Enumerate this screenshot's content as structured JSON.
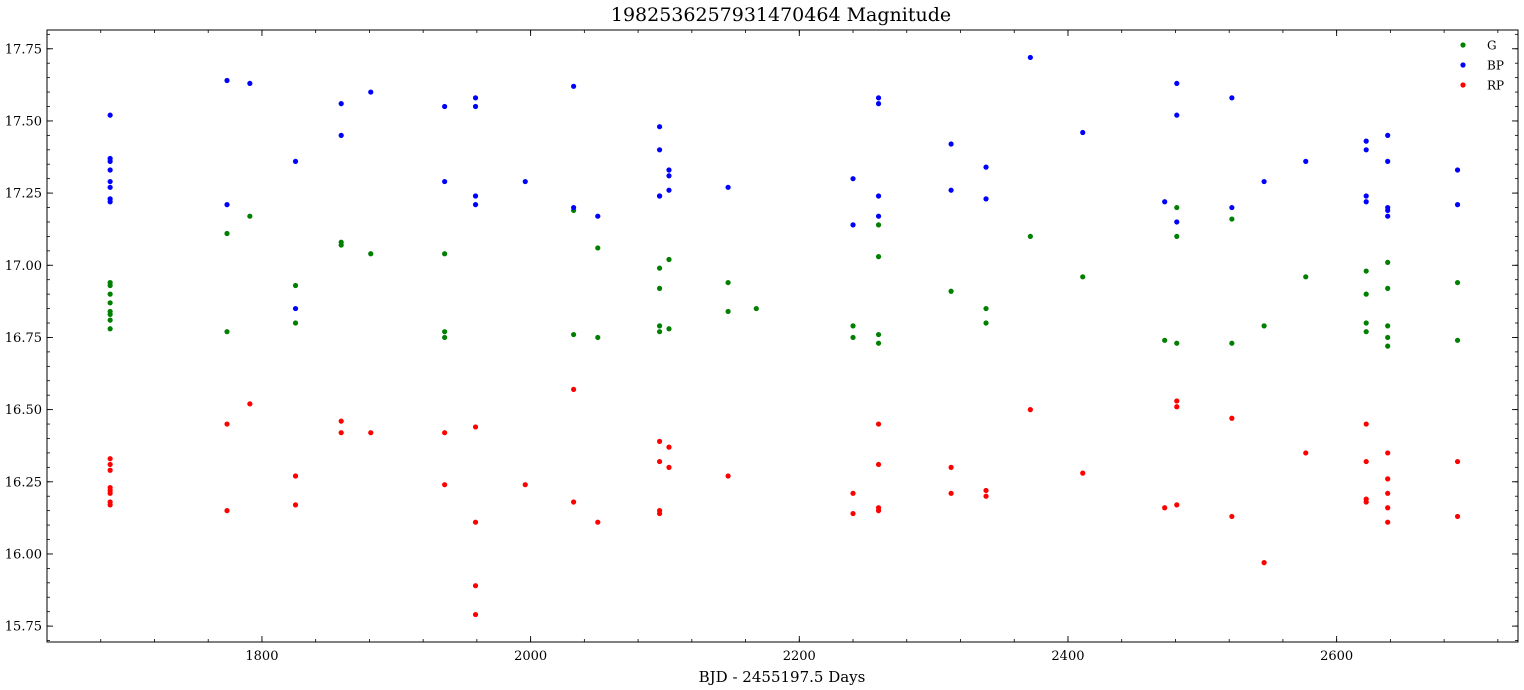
{
  "chart_data": {
    "type": "scatter",
    "title": "1982536257931470464 Magnitude",
    "xlabel": "BJD - 2455197.5 Days",
    "ylabel": "",
    "xlim": [
      1640,
      2735
    ],
    "ylim": [
      15.695,
      17.815
    ],
    "xticks": [
      1800,
      2000,
      2200,
      2400,
      2600
    ],
    "yticks": [
      15.75,
      16.0,
      16.25,
      16.5,
      16.75,
      17.0,
      17.25,
      17.5,
      17.75
    ],
    "yticks_labels": [
      "15.75",
      "16.00",
      "16.25",
      "16.50",
      "16.75",
      "17.00",
      "17.25",
      "17.50",
      "17.75"
    ],
    "legend_position": "top-right",
    "grid": false,
    "series": [
      {
        "name": "G",
        "color": "#008000",
        "points": [
          [
            1687,
            16.78
          ],
          [
            1687,
            16.81
          ],
          [
            1687,
            16.83
          ],
          [
            1687,
            16.84
          ],
          [
            1687,
            16.87
          ],
          [
            1687,
            16.9
          ],
          [
            1687,
            16.93
          ],
          [
            1687,
            16.94
          ],
          [
            1774,
            17.11
          ],
          [
            1774,
            16.77
          ],
          [
            1791,
            17.17
          ],
          [
            1825,
            16.93
          ],
          [
            1825,
            16.8
          ],
          [
            1859,
            17.08
          ],
          [
            1859,
            17.07
          ],
          [
            1881,
            17.04
          ],
          [
            1936,
            17.04
          ],
          [
            1936,
            16.77
          ],
          [
            1936,
            16.75
          ],
          [
            2032,
            17.19
          ],
          [
            2032,
            16.76
          ],
          [
            2050,
            17.06
          ],
          [
            2050,
            16.75
          ],
          [
            2096,
            16.99
          ],
          [
            2096,
            16.92
          ],
          [
            2096,
            16.79
          ],
          [
            2096,
            16.77
          ],
          [
            2103,
            17.02
          ],
          [
            2103,
            16.78
          ],
          [
            2147,
            16.94
          ],
          [
            2147,
            16.84
          ],
          [
            2168,
            16.85
          ],
          [
            2240,
            16.79
          ],
          [
            2240,
            16.75
          ],
          [
            2259,
            17.14
          ],
          [
            2259,
            17.03
          ],
          [
            2259,
            16.76
          ],
          [
            2259,
            16.73
          ],
          [
            2313,
            16.91
          ],
          [
            2339,
            16.85
          ],
          [
            2339,
            16.8
          ],
          [
            2372,
            17.1
          ],
          [
            2411,
            16.96
          ],
          [
            2472,
            16.74
          ],
          [
            2481,
            17.2
          ],
          [
            2481,
            17.1
          ],
          [
            2481,
            16.73
          ],
          [
            2522,
            17.16
          ],
          [
            2522,
            16.73
          ],
          [
            2546,
            16.79
          ],
          [
            2577,
            16.96
          ],
          [
            2622,
            16.98
          ],
          [
            2622,
            16.9
          ],
          [
            2622,
            16.8
          ],
          [
            2622,
            16.77
          ],
          [
            2638,
            17.01
          ],
          [
            2638,
            16.92
          ],
          [
            2638,
            16.79
          ],
          [
            2638,
            16.75
          ],
          [
            2638,
            16.72
          ],
          [
            2690,
            16.94
          ],
          [
            2690,
            16.74
          ]
        ]
      },
      {
        "name": "BP",
        "color": "#0000ff",
        "points": [
          [
            1687,
            17.52
          ],
          [
            1687,
            17.37
          ],
          [
            1687,
            17.36
          ],
          [
            1687,
            17.33
          ],
          [
            1687,
            17.29
          ],
          [
            1687,
            17.27
          ],
          [
            1687,
            17.23
          ],
          [
            1687,
            17.22
          ],
          [
            1774,
            17.64
          ],
          [
            1774,
            17.21
          ],
          [
            1791,
            17.63
          ],
          [
            1825,
            17.36
          ],
          [
            1825,
            16.85
          ],
          [
            1859,
            17.56
          ],
          [
            1859,
            17.45
          ],
          [
            1881,
            17.6
          ],
          [
            1936,
            17.55
          ],
          [
            1936,
            17.29
          ],
          [
            1959,
            17.58
          ],
          [
            1959,
            17.55
          ],
          [
            1959,
            17.24
          ],
          [
            1959,
            17.21
          ],
          [
            1996,
            17.29
          ],
          [
            2032,
            17.62
          ],
          [
            2032,
            17.2
          ],
          [
            2050,
            17.17
          ],
          [
            2096,
            17.48
          ],
          [
            2096,
            17.4
          ],
          [
            2096,
            17.24
          ],
          [
            2096,
            17.24
          ],
          [
            2103,
            17.33
          ],
          [
            2103,
            17.31
          ],
          [
            2103,
            17.26
          ],
          [
            2147,
            17.27
          ],
          [
            2240,
            17.3
          ],
          [
            2240,
            17.14
          ],
          [
            2259,
            17.58
          ],
          [
            2259,
            17.56
          ],
          [
            2259,
            17.24
          ],
          [
            2259,
            17.17
          ],
          [
            2313,
            17.42
          ],
          [
            2313,
            17.26
          ],
          [
            2339,
            17.34
          ],
          [
            2339,
            17.23
          ],
          [
            2372,
            17.72
          ],
          [
            2411,
            17.46
          ],
          [
            2472,
            17.22
          ],
          [
            2481,
            17.63
          ],
          [
            2481,
            17.52
          ],
          [
            2481,
            17.15
          ],
          [
            2522,
            17.58
          ],
          [
            2522,
            17.2
          ],
          [
            2546,
            17.29
          ],
          [
            2577,
            17.36
          ],
          [
            2622,
            17.43
          ],
          [
            2622,
            17.4
          ],
          [
            2622,
            17.24
          ],
          [
            2622,
            17.22
          ],
          [
            2638,
            17.45
          ],
          [
            2638,
            17.36
          ],
          [
            2638,
            17.19
          ],
          [
            2638,
            17.2
          ],
          [
            2638,
            17.17
          ],
          [
            2690,
            17.33
          ],
          [
            2690,
            17.21
          ]
        ]
      },
      {
        "name": "RP",
        "color": "#ff0000",
        "points": [
          [
            1687,
            16.33
          ],
          [
            1687,
            16.31
          ],
          [
            1687,
            16.29
          ],
          [
            1687,
            16.23
          ],
          [
            1687,
            16.22
          ],
          [
            1687,
            16.21
          ],
          [
            1687,
            16.18
          ],
          [
            1687,
            16.17
          ],
          [
            1774,
            16.45
          ],
          [
            1774,
            16.15
          ],
          [
            1791,
            16.52
          ],
          [
            1825,
            16.27
          ],
          [
            1825,
            16.17
          ],
          [
            1859,
            16.46
          ],
          [
            1859,
            16.42
          ],
          [
            1881,
            16.42
          ],
          [
            1936,
            16.42
          ],
          [
            1936,
            16.24
          ],
          [
            1959,
            16.44
          ],
          [
            1959,
            16.11
          ],
          [
            1959,
            15.89
          ],
          [
            1959,
            15.79
          ],
          [
            1996,
            16.24
          ],
          [
            2032,
            16.57
          ],
          [
            2032,
            16.18
          ],
          [
            2050,
            16.11
          ],
          [
            2096,
            16.39
          ],
          [
            2096,
            16.32
          ],
          [
            2096,
            16.15
          ],
          [
            2096,
            16.14
          ],
          [
            2103,
            16.37
          ],
          [
            2103,
            16.3
          ],
          [
            2147,
            16.27
          ],
          [
            2240,
            16.21
          ],
          [
            2240,
            16.14
          ],
          [
            2259,
            16.45
          ],
          [
            2259,
            16.31
          ],
          [
            2259,
            16.16
          ],
          [
            2259,
            16.15
          ],
          [
            2313,
            16.3
          ],
          [
            2313,
            16.21
          ],
          [
            2339,
            16.22
          ],
          [
            2339,
            16.2
          ],
          [
            2372,
            16.5
          ],
          [
            2411,
            16.28
          ],
          [
            2472,
            16.16
          ],
          [
            2481,
            16.53
          ],
          [
            2481,
            16.51
          ],
          [
            2481,
            16.17
          ],
          [
            2522,
            16.47
          ],
          [
            2522,
            16.13
          ],
          [
            2546,
            15.97
          ],
          [
            2577,
            16.35
          ],
          [
            2622,
            16.45
          ],
          [
            2622,
            16.32
          ],
          [
            2622,
            16.19
          ],
          [
            2622,
            16.18
          ],
          [
            2638,
            16.35
          ],
          [
            2638,
            16.26
          ],
          [
            2638,
            16.21
          ],
          [
            2638,
            16.16
          ],
          [
            2638,
            16.11
          ],
          [
            2690,
            16.32
          ],
          [
            2690,
            16.13
          ]
        ]
      }
    ]
  }
}
